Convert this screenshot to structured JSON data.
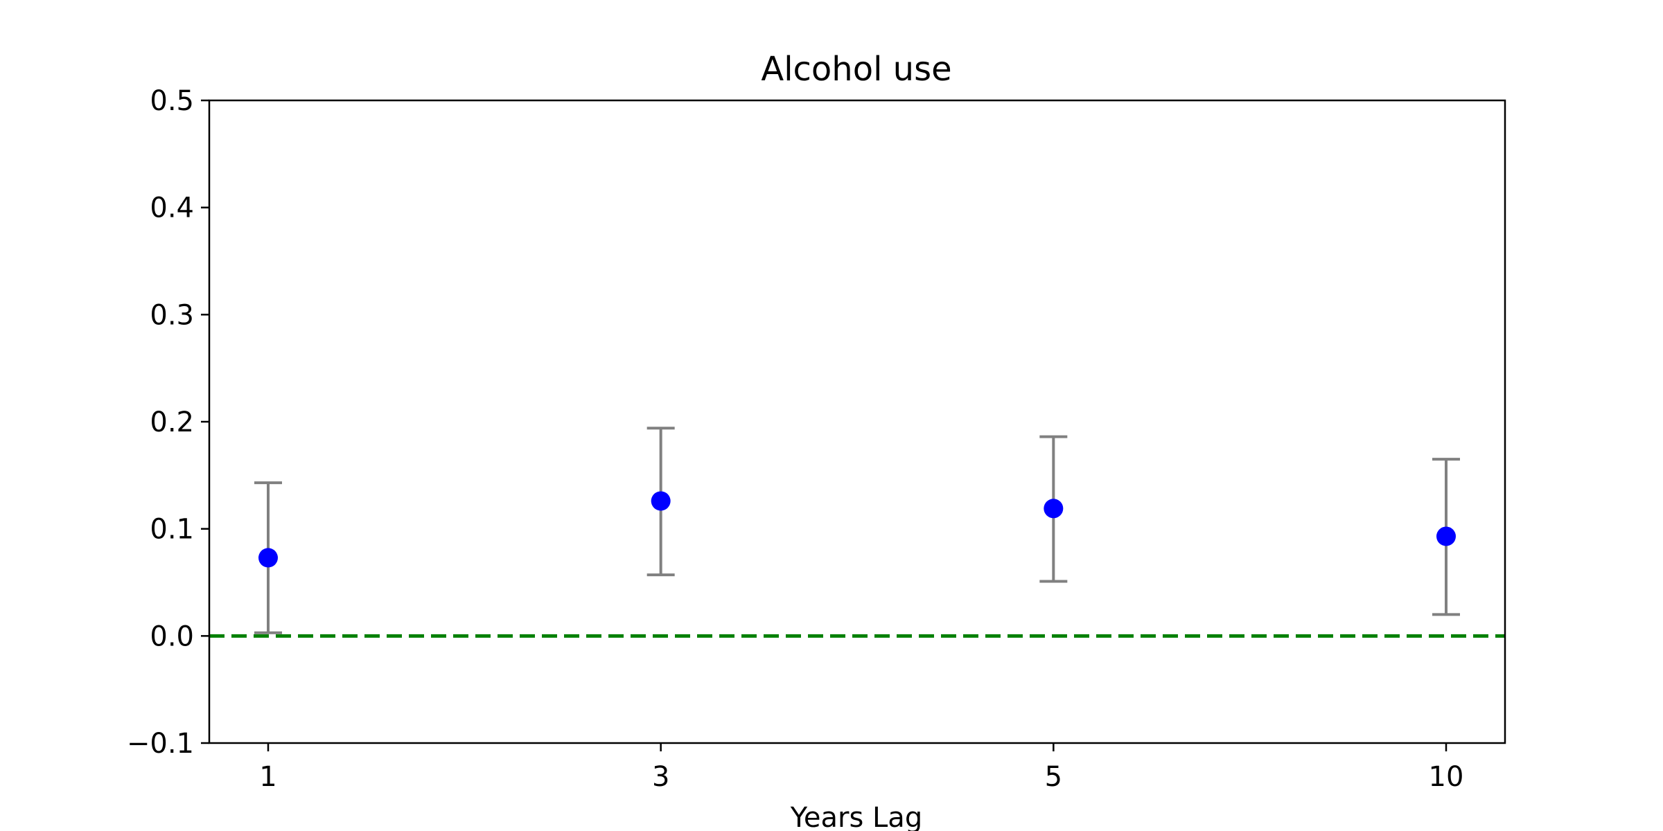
{
  "chart_data": {
    "type": "scatter",
    "title": "Alcohol use",
    "xlabel": "Years Lag",
    "ylabel": "",
    "categories": [
      "1",
      "3",
      "5",
      "10"
    ],
    "series": [
      {
        "values": [
          0.073,
          0.126,
          0.119,
          0.093
        ],
        "ci_lower": [
          0.003,
          0.057,
          0.051,
          0.02
        ],
        "ci_upper": [
          0.143,
          0.194,
          0.186,
          0.165
        ],
        "color": "#0000ff",
        "errorbar_color": "#808080"
      }
    ],
    "ylim": [
      -0.1,
      0.5
    ],
    "yticks": [
      -0.1,
      0.0,
      0.1,
      0.2,
      0.3,
      0.4,
      0.5
    ],
    "ytick_labels": [
      "−0.1",
      "0.0",
      "0.1",
      "0.2",
      "0.3",
      "0.4",
      "0.5"
    ],
    "reference_line": {
      "y": 0.0,
      "style": "dashed",
      "color": "#008000"
    },
    "grid": false,
    "legend": "none"
  }
}
